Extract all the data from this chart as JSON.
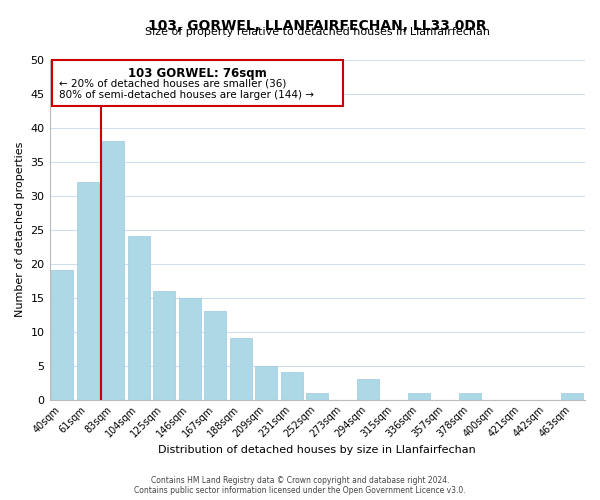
{
  "title": "103, GORWEL, LLANFAIRFECHAN, LL33 0DR",
  "subtitle": "Size of property relative to detached houses in Llanfairfechan",
  "xlabel": "Distribution of detached houses by size in Llanfairfechan",
  "ylabel": "Number of detached properties",
  "bar_labels": [
    "40sqm",
    "61sqm",
    "83sqm",
    "104sqm",
    "125sqm",
    "146sqm",
    "167sqm",
    "188sqm",
    "209sqm",
    "231sqm",
    "252sqm",
    "273sqm",
    "294sqm",
    "315sqm",
    "336sqm",
    "357sqm",
    "378sqm",
    "400sqm",
    "421sqm",
    "442sqm",
    "463sqm"
  ],
  "bar_values": [
    19,
    32,
    38,
    24,
    16,
    15,
    13,
    9,
    5,
    4,
    1,
    0,
    3,
    0,
    1,
    0,
    1,
    0,
    0,
    0,
    1
  ],
  "bar_color": "#add8e6",
  "vline_color": "#cc0000",
  "vline_x": 1.5,
  "ylim": [
    0,
    50
  ],
  "yticks": [
    0,
    5,
    10,
    15,
    20,
    25,
    30,
    35,
    40,
    45,
    50
  ],
  "annotation_title": "103 GORWEL: 76sqm",
  "annotation_line1": "← 20% of detached houses are smaller (36)",
  "annotation_line2": "80% of semi-detached houses are larger (144) →",
  "footer_line1": "Contains HM Land Registry data © Crown copyright and database right 2024.",
  "footer_line2": "Contains public sector information licensed under the Open Government Licence v3.0.",
  "background_color": "#ffffff",
  "grid_color": "#d0dff0"
}
